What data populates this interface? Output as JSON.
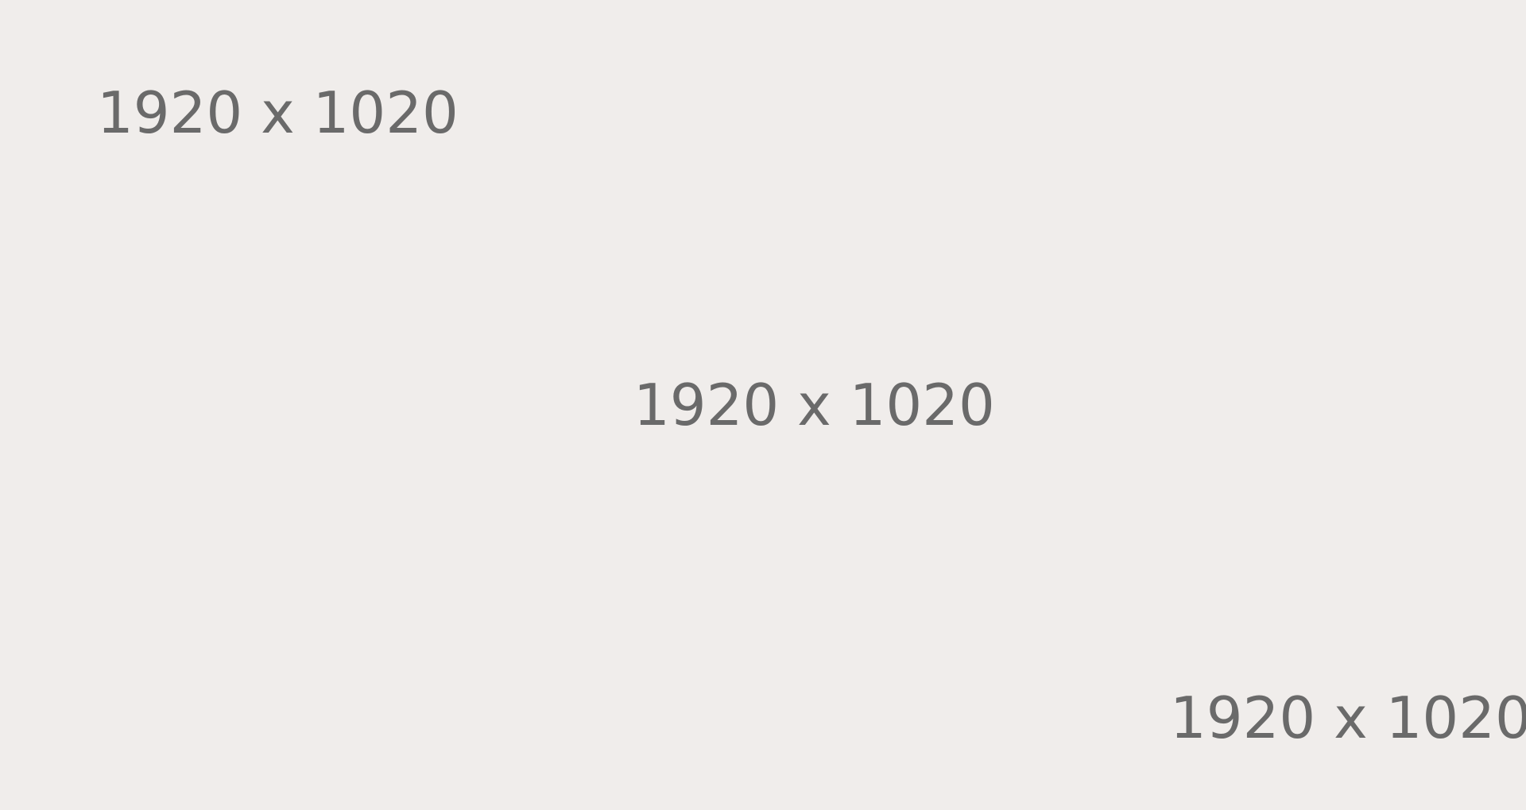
{
  "placeholder": {
    "background_color": "#f0edeb",
    "text_color": "#6a6a6a",
    "labels": {
      "top_left": "1920 x 1020",
      "center": "1920 x 1020",
      "bottom_right": "1920 x 1020"
    }
  }
}
